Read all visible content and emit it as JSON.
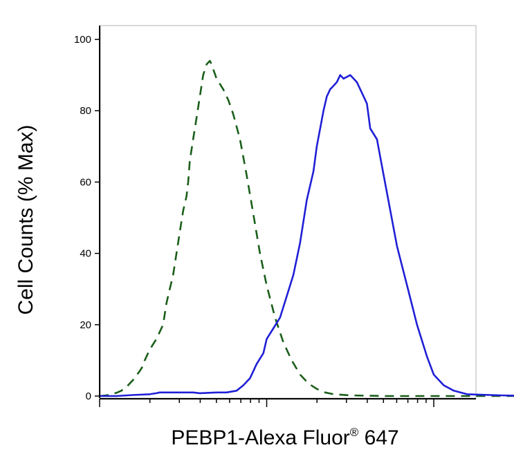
{
  "chart_data": {
    "type": "line",
    "title": "",
    "xlabel": "PEBP1-Alexa Fluor",
    "xlabel_superscript": "®",
    "xlabel_suffix": " 647",
    "ylabel": "Cell Counts (% Max)",
    "x_scale": "log",
    "x_major_decades": 3,
    "ylim": [
      0,
      100
    ],
    "yticks": [
      "0",
      "20",
      "40",
      "60",
      "80",
      "100"
    ],
    "ytick_values": [
      0,
      20,
      40,
      60,
      80,
      100
    ],
    "grid": false,
    "series": [
      {
        "line_style": "dashed",
        "color": "#1a5e1a",
        "x": [
          0.0,
          0.04,
          0.07,
          0.1,
          0.13,
          0.16,
          0.2,
          0.24,
          0.26,
          0.27,
          0.3,
          0.34,
          0.38,
          0.4,
          0.42,
          0.44,
          0.46,
          0.48,
          0.5,
          0.52,
          0.53,
          0.54,
          0.56,
          0.58,
          0.6,
          0.62,
          0.64,
          0.66,
          0.67,
          0.7,
          0.74,
          0.77,
          0.8,
          0.84,
          0.88,
          0.92,
          0.96,
          1.0,
          1.05,
          1.1,
          1.15,
          1.2,
          1.25,
          1.3,
          1.35,
          1.4,
          1.5,
          1.6,
          1.7,
          1.8,
          1.9,
          2.0,
          2.1,
          2.2,
          2.4,
          2.6,
          2.8,
          3.0,
          3.2,
          3.4,
          3.6,
          3.8,
          4.0,
          4.2,
          4.4
        ],
        "y": [
          0.0,
          0.2,
          0.5,
          0.9,
          1.5,
          2.5,
          4.5,
          7.0,
          8.5,
          10.0,
          13.0,
          16.0,
          20.0,
          26.0,
          30.0,
          34.0,
          40.0,
          46.0,
          52.0,
          56.0,
          60.0,
          66.0,
          72.0,
          78.0,
          84.0,
          90.0,
          93.0,
          94.0,
          93.0,
          89.0,
          86.0,
          83.0,
          79.0,
          72.0,
          62.0,
          51.0,
          40.0,
          31.0,
          22.0,
          15.0,
          10.0,
          6.0,
          3.5,
          2.0,
          1.0,
          0.5,
          0.2,
          0.1,
          0.0,
          0.0,
          0.0,
          0.0,
          0.0,
          0.0,
          0.0,
          0.0,
          0.0,
          0.0,
          0.0,
          0.0,
          0.0,
          0.0,
          0.0,
          0.0,
          0.0
        ]
      },
      {
        "line_style": "solid",
        "color": "#1f1fd6",
        "x": [
          0.0,
          0.1,
          0.2,
          0.3,
          0.34,
          0.36,
          0.4,
          0.5,
          0.56,
          0.6,
          0.7,
          0.76,
          0.82,
          0.86,
          0.9,
          0.92,
          0.94,
          0.98,
          1.0,
          1.04,
          1.08,
          1.12,
          1.16,
          1.2,
          1.24,
          1.28,
          1.3,
          1.32,
          1.34,
          1.36,
          1.38,
          1.4,
          1.42,
          1.44,
          1.46,
          1.5,
          1.54,
          1.58,
          1.6,
          1.62,
          1.66,
          1.7,
          1.74,
          1.78,
          1.84,
          1.9,
          1.96,
          2.0,
          2.06,
          2.12,
          2.2,
          2.4,
          2.6,
          2.8,
          3.0,
          3.2,
          3.4,
          3.6,
          3.8,
          4.0,
          4.2,
          4.4
        ],
        "y": [
          0.0,
          0.0,
          0.3,
          0.5,
          0.8,
          1.0,
          1.0,
          1.0,
          1.0,
          0.8,
          1.0,
          1.0,
          1.5,
          3.0,
          5.0,
          7.0,
          9.0,
          12.0,
          16.0,
          19.0,
          22.0,
          28.0,
          34.0,
          43.0,
          55.0,
          63.0,
          70.0,
          75.0,
          80.0,
          84.0,
          86.0,
          87.0,
          88.0,
          90.0,
          89.0,
          90.0,
          88.0,
          84.0,
          82.0,
          75.0,
          72.0,
          62.0,
          52.0,
          42.0,
          31.0,
          20.0,
          11.0,
          6.0,
          3.0,
          1.5,
          0.5,
          0.2,
          0.0,
          0.0,
          0.0,
          0.0,
          0.0,
          0.0,
          0.0,
          0.0,
          0.0,
          0.0
        ]
      }
    ]
  }
}
